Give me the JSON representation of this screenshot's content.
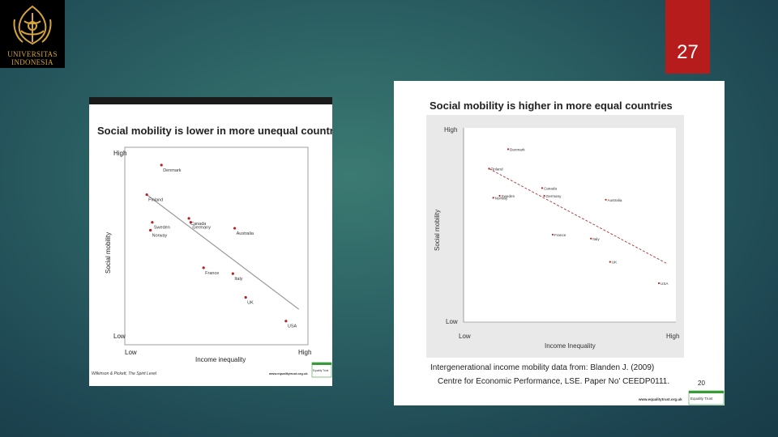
{
  "logo": {
    "line1": "UNIVERSITAS",
    "line2": "INDONESIA"
  },
  "page_number": "27",
  "colors": {
    "accent": "#b71c1c",
    "logo_gold": "#d4a53a",
    "point": "#b22222",
    "equality_green": "#3a9a3a"
  },
  "chart_data": [
    {
      "type": "scatter",
      "title": "Social mobility is lower in more unequal countries",
      "xlabel": "Income inequality",
      "ylabel": "Social mobility",
      "x_ticks": [
        "Low",
        "High"
      ],
      "y_ticks": [
        "High",
        "Low"
      ],
      "xlim": [
        0,
        1
      ],
      "ylim": [
        0,
        1
      ],
      "trend": {
        "from": [
          0.12,
          0.76
        ],
        "to": [
          0.95,
          0.18
        ]
      },
      "points": [
        {
          "label": "Denmark",
          "x": 0.2,
          "y": 0.91
        },
        {
          "label": "Finland",
          "x": 0.12,
          "y": 0.76
        },
        {
          "label": "Sweden",
          "x": 0.15,
          "y": 0.62
        },
        {
          "label": "Norway",
          "x": 0.14,
          "y": 0.58
        },
        {
          "label": "Canada",
          "x": 0.35,
          "y": 0.64
        },
        {
          "label": "Germany",
          "x": 0.36,
          "y": 0.62
        },
        {
          "label": "Australia",
          "x": 0.6,
          "y": 0.59
        },
        {
          "label": "France",
          "x": 0.43,
          "y": 0.39
        },
        {
          "label": "Italy",
          "x": 0.59,
          "y": 0.36
        },
        {
          "label": "UK",
          "x": 0.66,
          "y": 0.24
        },
        {
          "label": "USA",
          "x": 0.88,
          "y": 0.12
        }
      ],
      "source": "Wilkinson & Pickett, The Spirit Level",
      "url": "www.equalitytrust.org.uk",
      "badge": "Equality Trust"
    },
    {
      "type": "scatter",
      "title": "Social mobility is higher in more equal countries",
      "xlabel": "Income Inequality",
      "ylabel": "Social mobility",
      "x_ticks": [
        "Low",
        "High"
      ],
      "y_ticks": [
        "High",
        "Low"
      ],
      "xlim": [
        0,
        1
      ],
      "ylim": [
        0,
        1
      ],
      "trend": {
        "from": [
          0.12,
          0.79
        ],
        "to": [
          0.96,
          0.3
        ]
      },
      "points": [
        {
          "label": "Denmark",
          "x": 0.21,
          "y": 0.89
        },
        {
          "label": "Finland",
          "x": 0.12,
          "y": 0.79
        },
        {
          "label": "Norway",
          "x": 0.14,
          "y": 0.64
        },
        {
          "label": "Sweden",
          "x": 0.17,
          "y": 0.65
        },
        {
          "label": "Canada",
          "x": 0.37,
          "y": 0.69
        },
        {
          "label": "Germany",
          "x": 0.38,
          "y": 0.65
        },
        {
          "label": "Australia",
          "x": 0.67,
          "y": 0.63
        },
        {
          "label": "France",
          "x": 0.42,
          "y": 0.45
        },
        {
          "label": "Italy",
          "x": 0.6,
          "y": 0.43
        },
        {
          "label": "UK",
          "x": 0.69,
          "y": 0.31
        },
        {
          "label": "USA",
          "x": 0.92,
          "y": 0.2
        }
      ],
      "source_line1": "Intergenerational income mobility data from: Blanden J. (2009)",
      "source_line2": "Centre for Economic Performance, LSE.  Paper No' CEEDP0111.",
      "slide_number": "20",
      "url": "www.equalitytrust.org.uk",
      "badge": "Equality Trust"
    }
  ]
}
